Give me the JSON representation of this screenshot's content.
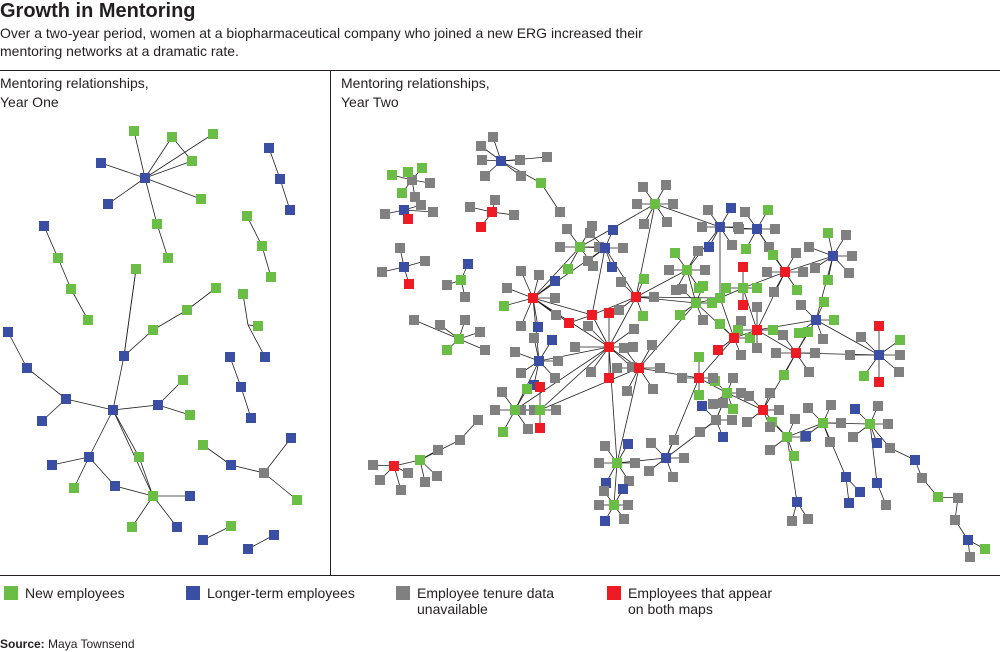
{
  "header": {
    "title": "Growth in Mentoring",
    "subtitle": "Over a two-year period, women at a biopharmaceutical company who joined a new ERG increased their mentoring networks at a dramatic rate."
  },
  "panels": {
    "year_one": {
      "label_line1": "Mentoring relationships,",
      "label_line2": "Year One"
    },
    "year_two": {
      "label_line1": "Mentoring relationships,",
      "label_line2": "Year Two"
    }
  },
  "colors": {
    "green": "#6abd45",
    "blue": "#3a4fa3",
    "gray": "#808080",
    "red": "#ed1c24",
    "line": "#231f20"
  },
  "legend": [
    {
      "key": "green",
      "line1": "New employees",
      "line2": ""
    },
    {
      "key": "blue",
      "line1": "Longer-term employees",
      "line2": ""
    },
    {
      "key": "gray",
      "line1": "Employee tenure data",
      "line2": "unavailable"
    },
    {
      "key": "red",
      "line1": "Employees that appear",
      "line2": "on both maps"
    }
  ],
  "source": {
    "label": "Source:",
    "text": "Maya Townsend"
  }
}
